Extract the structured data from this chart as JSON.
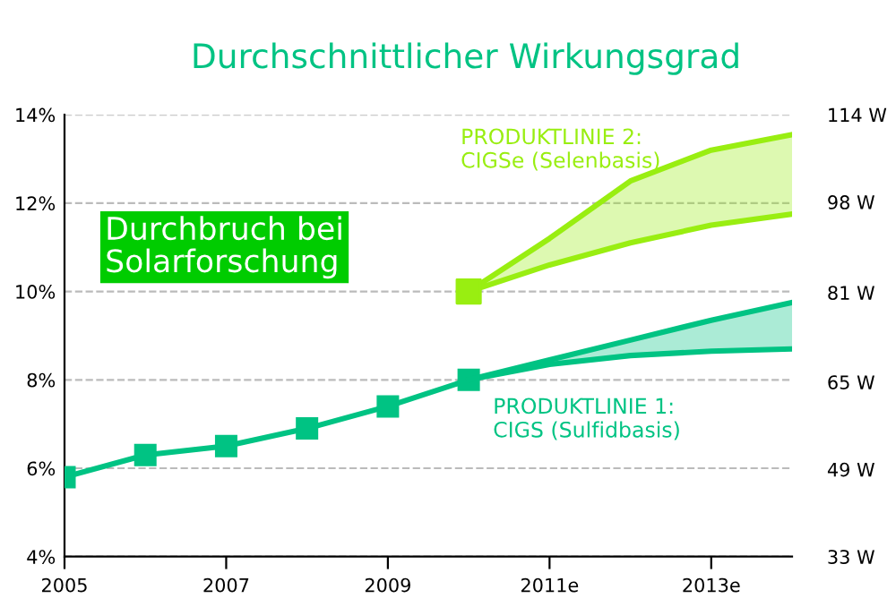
{
  "chart_data": {
    "type": "line",
    "title": "Durchschnittlicher Wirkungsgrad",
    "xlim": [
      2005,
      2014
    ],
    "xticks": [
      2005,
      2007,
      2009,
      {
        "value": 2011,
        "label": "2011e"
      },
      {
        "value": 2013,
        "label": "2013e"
      }
    ],
    "ylim": [
      4,
      14
    ],
    "yticks": [
      {
        "value": 4,
        "label": "4%"
      },
      {
        "value": 6,
        "label": "6%"
      },
      {
        "value": 8,
        "label": "8%"
      },
      {
        "value": 10,
        "label": "10%"
      },
      {
        "value": 12,
        "label": "12%"
      },
      {
        "value": 14,
        "label": "14%"
      }
    ],
    "y2lim": [
      33,
      114
    ],
    "y2ticks": [
      {
        "value": 33,
        "label": "33 W"
      },
      {
        "value": 49,
        "label": "49 W"
      },
      {
        "value": 65,
        "label": "65 W"
      },
      {
        "value": 81.4,
        "label": "81 W"
      },
      {
        "value": 98,
        "label": "98 W"
      },
      {
        "value": 114,
        "label": "114 W"
      }
    ],
    "grid": "y",
    "line_style": "solid",
    "series": [
      {
        "color": "#00c383",
        "marker": "square",
        "x": [
          2005,
          2006,
          2007,
          2008,
          2009,
          2010
        ],
        "values": [
          5.8,
          6.3,
          6.5,
          6.9,
          7.4,
          8.0
        ]
      },
      {
        "name": "PRODUKTLINIE 1:\nCIGS (Sulfidbasis)",
        "color": "#00c383",
        "marker": "none",
        "x": [
          2010,
          2011,
          2012,
          2013,
          2014
        ],
        "values": [
          8.0,
          8.35,
          8.55,
          8.65,
          8.7
        ],
        "lower": [
          8.0,
          8.35,
          8.55,
          8.65,
          8.7
        ],
        "upper": [
          8.0,
          8.45,
          8.9,
          9.35,
          9.75
        ]
      },
      {
        "color": "#00c383",
        "marker": "none",
        "x": [
          2010,
          2011,
          2012,
          2013,
          2014
        ],
        "values": [
          8.0,
          8.45,
          8.9,
          9.35,
          9.75
        ]
      },
      {
        "name": "PRODUKTLINIE 2:\nCIGSe (Selenbasis)",
        "color": "#99ee11",
        "marker": "none",
        "x": [
          2010,
          2011,
          2012,
          2013,
          2014
        ],
        "values": [
          10.0,
          10.6,
          11.1,
          11.5,
          11.75
        ],
        "lower": [
          10.0,
          10.6,
          11.1,
          11.5,
          11.75
        ],
        "upper": [
          10.0,
          11.2,
          12.5,
          13.2,
          13.55
        ]
      },
      {
        "color": "#99ee11",
        "marker": "none",
        "x": [
          2010,
          2011,
          2012,
          2013,
          2014
        ],
        "values": [
          10.0,
          11.2,
          12.5,
          13.2,
          13.55
        ]
      },
      {
        "type": "scatter",
        "color": "#99ee11",
        "marker": "square",
        "x": [
          2010
        ],
        "values": [
          10.0
        ]
      }
    ],
    "annotations": [
      "Durchbruch bei\nSolarforschung"
    ]
  }
}
